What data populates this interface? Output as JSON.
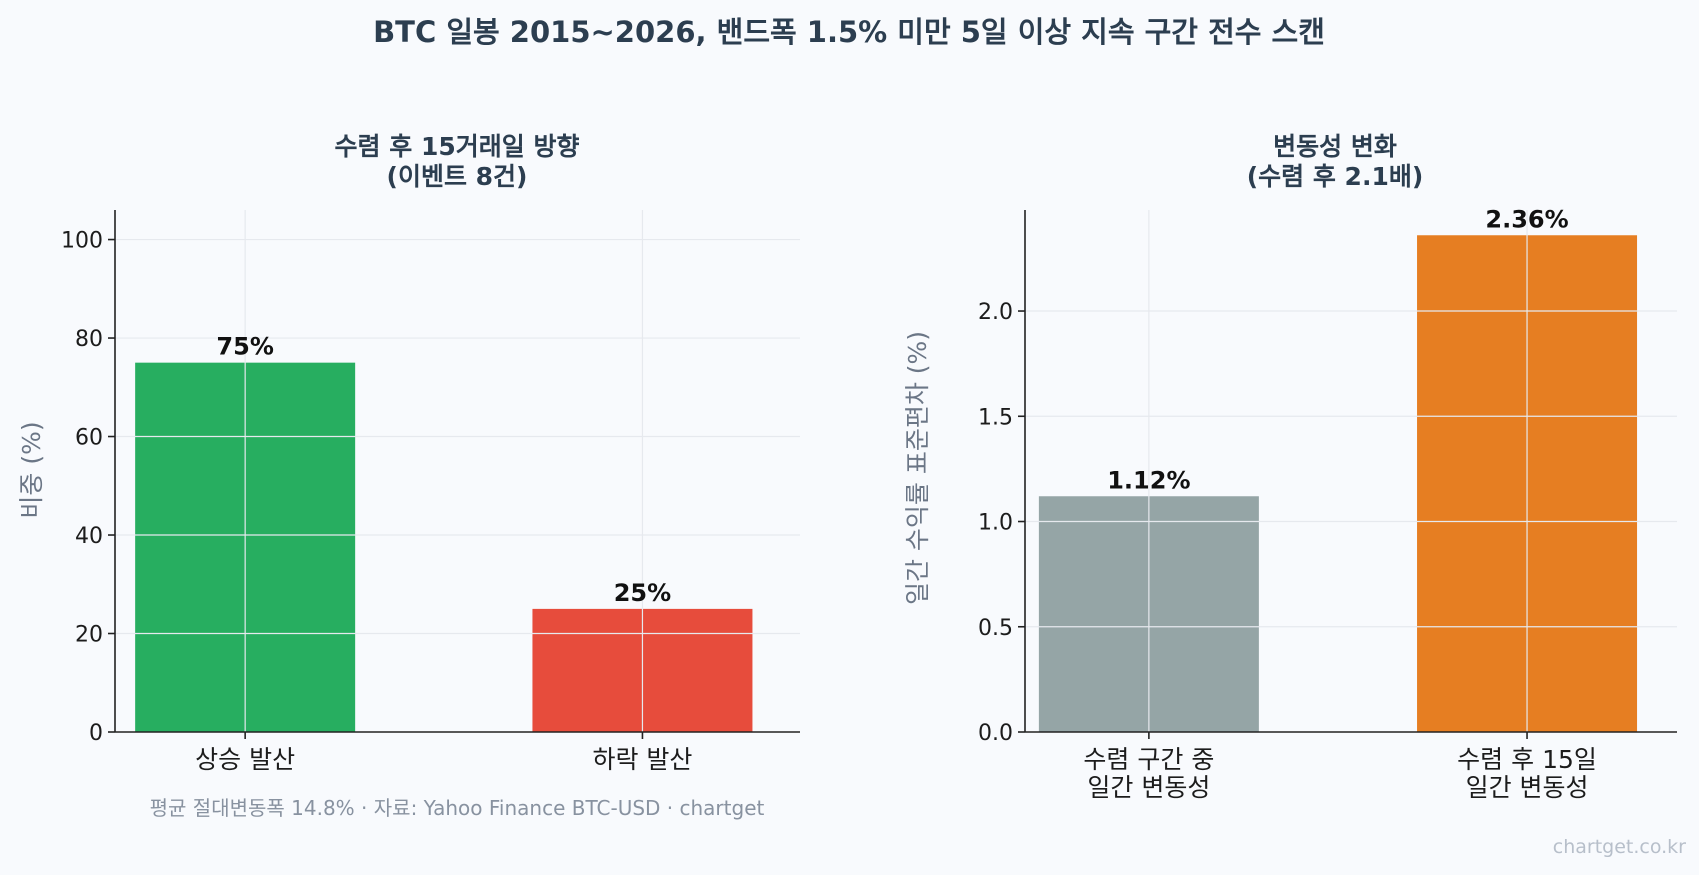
{
  "suptitle": "BTC 일봉 2015~2026, 밴드폭 1.5% 미만 5일 이상 지속 구간 전수 스캔",
  "footer": "평균 절대변동폭 14.8% · 자료: Yahoo Finance BTC-USD · chartget",
  "watermark": "chartget.co.kr",
  "chart_data": [
    {
      "type": "bar",
      "title": [
        "수렴 후 15거래일 방향",
        "(이벤트 8건)"
      ],
      "ylabel": "비중 (%)",
      "xlabel": "",
      "categories": [
        [
          "상승 발산"
        ],
        [
          "하락 발산"
        ]
      ],
      "values": [
        75,
        25
      ],
      "value_labels": [
        "75%",
        "25%"
      ],
      "colors": [
        "#27ae60",
        "#e74c3c"
      ],
      "ylim": [
        0,
        106
      ],
      "yticks": [
        0,
        20,
        40,
        60,
        80,
        100
      ],
      "ytick_labels": [
        "0",
        "20",
        "40",
        "60",
        "80",
        "100"
      ],
      "grid": true
    },
    {
      "type": "bar",
      "title": [
        "변동성 변화",
        "(수렴 후 2.1배)"
      ],
      "ylabel": "일간 수익률 표준편차 (%)",
      "xlabel": "",
      "categories": [
        [
          "수렴 구간 중",
          "일간 변동성"
        ],
        [
          "수렴 후 15일",
          "일간 변동성"
        ]
      ],
      "values": [
        1.12,
        2.36
      ],
      "value_labels": [
        "1.12%",
        "2.36%"
      ],
      "colors": [
        "#95a5a6",
        "#e67e22"
      ],
      "ylim": [
        0,
        2.48
      ],
      "yticks": [
        0,
        0.5,
        1.0,
        1.5,
        2.0
      ],
      "ytick_labels": [
        "0.0",
        "0.5",
        "1.0",
        "1.5",
        "2.0"
      ],
      "grid": true
    }
  ]
}
